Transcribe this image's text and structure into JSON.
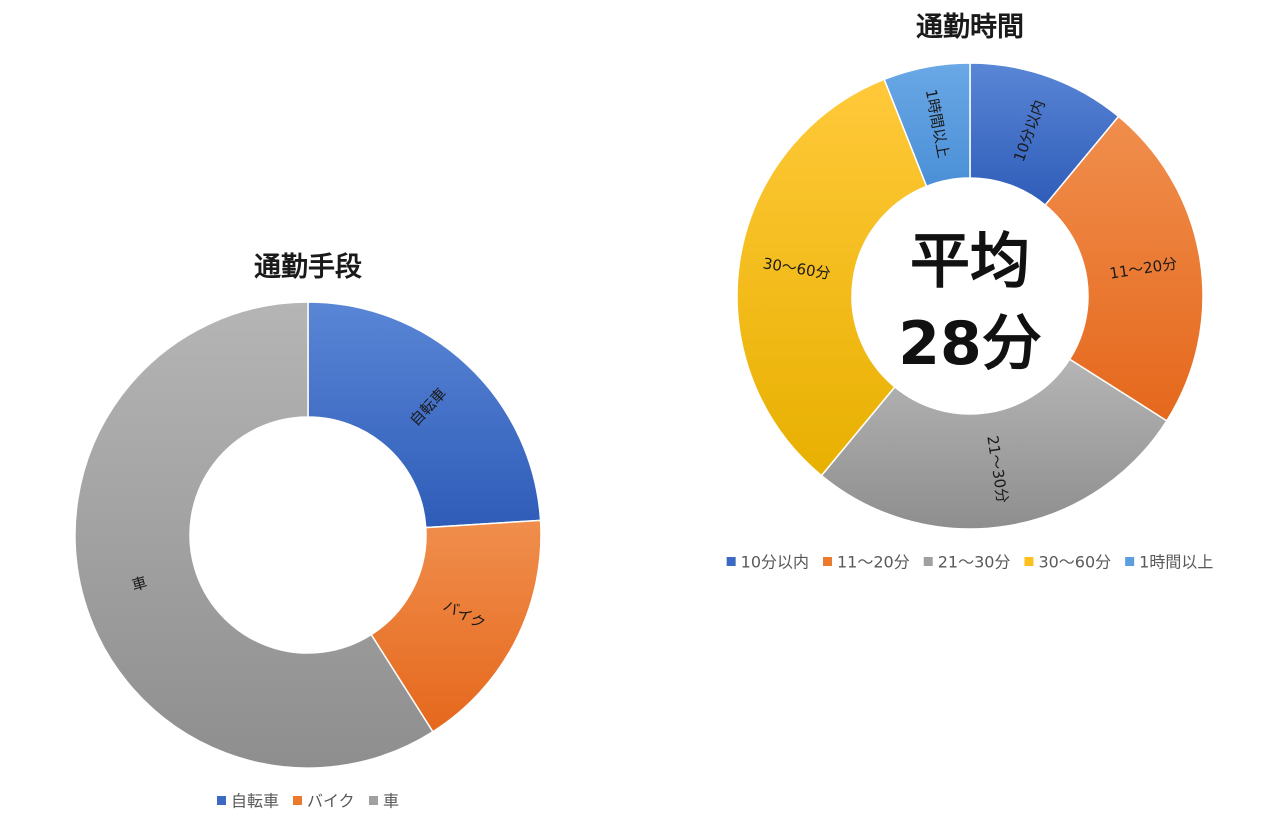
{
  "chart_data": [
    {
      "type": "pie",
      "variant": "donut",
      "title": "通勤手段",
      "categories": [
        "自転車",
        "バイク",
        "車"
      ],
      "values": [
        24,
        17,
        59
      ],
      "colors": [
        "#3b69c3",
        "#ec7a2d",
        "#a0a0a0"
      ],
      "legend": "bottom"
    },
    {
      "type": "pie",
      "variant": "donut",
      "title": "通勤時間",
      "categories": [
        "10分以内",
        "11～20分",
        "21～30分",
        "30～60分",
        "1時間以上"
      ],
      "values": [
        11,
        23,
        27,
        33,
        6
      ],
      "colors": [
        "#3b69c3",
        "#ec7a2d",
        "#a0a0a0",
        "#fdc01f",
        "#5c9ee0"
      ],
      "legend": "bottom",
      "center_text": [
        "平均",
        "28分"
      ]
    }
  ]
}
